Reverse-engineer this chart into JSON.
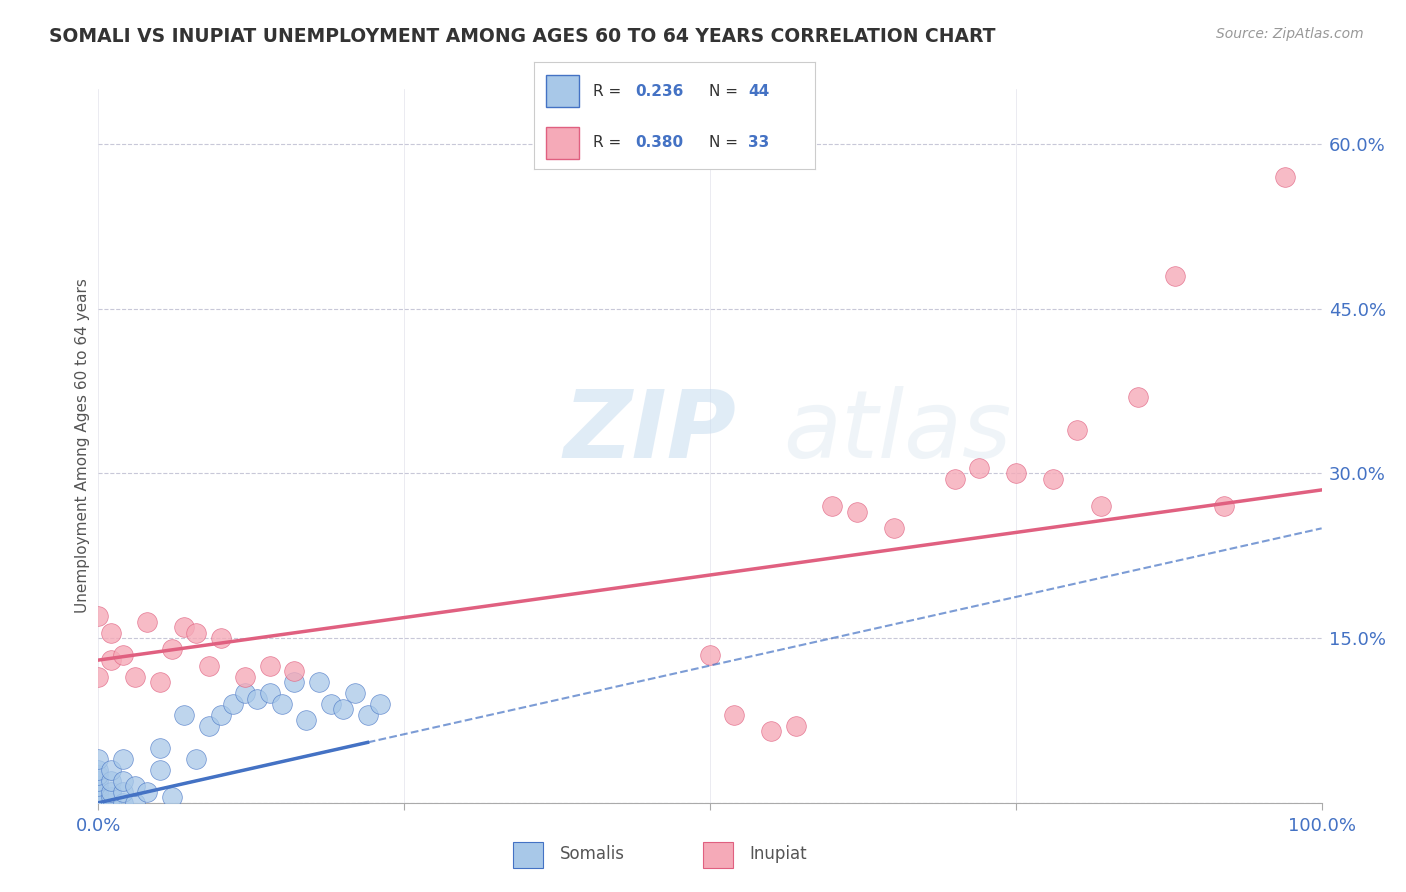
{
  "title": "SOMALI VS INUPIAT UNEMPLOYMENT AMONG AGES 60 TO 64 YEARS CORRELATION CHART",
  "source": "Source: ZipAtlas.com",
  "ylabel": "Unemployment Among Ages 60 to 64 years",
  "xlim": [
    0,
    1.0
  ],
  "ylim": [
    0,
    0.65
  ],
  "xticks": [
    0.0,
    0.25,
    0.5,
    0.75,
    1.0
  ],
  "xticklabels": [
    "0.0%",
    "",
    "",
    "",
    "100.0%"
  ],
  "yticks": [
    0.0,
    0.15,
    0.3,
    0.45,
    0.6
  ],
  "right_yticklabels": [
    "",
    "15.0%",
    "30.0%",
    "45.0%",
    "60.0%"
  ],
  "somali_color": "#a8c8e8",
  "inupiat_color": "#f5aab8",
  "somali_line_color": "#4472c4",
  "inupiat_line_color": "#e06080",
  "background_color": "#ffffff",
  "grid_color": "#c8c8d8",
  "watermark_zip": "ZIP",
  "watermark_atlas": "atlas",
  "somali_x": [
    0.0,
    0.0,
    0.0,
    0.0,
    0.0,
    0.0,
    0.0,
    0.0,
    0.0,
    0.0,
    0.0,
    0.0,
    0.01,
    0.01,
    0.01,
    0.01,
    0.01,
    0.02,
    0.02,
    0.02,
    0.02,
    0.03,
    0.03,
    0.04,
    0.05,
    0.05,
    0.06,
    0.07,
    0.08,
    0.09,
    0.1,
    0.11,
    0.12,
    0.13,
    0.14,
    0.15,
    0.16,
    0.17,
    0.18,
    0.19,
    0.2,
    0.21,
    0.22,
    0.23
  ],
  "somali_y": [
    0.0,
    0.0,
    0.0,
    0.005,
    0.005,
    0.01,
    0.01,
    0.015,
    0.02,
    0.025,
    0.03,
    0.04,
    0.0,
    0.005,
    0.01,
    0.02,
    0.03,
    0.0,
    0.01,
    0.02,
    0.04,
    0.0,
    0.015,
    0.01,
    0.03,
    0.05,
    0.005,
    0.08,
    0.04,
    0.07,
    0.08,
    0.09,
    0.1,
    0.095,
    0.1,
    0.09,
    0.11,
    0.075,
    0.11,
    0.09,
    0.085,
    0.1,
    0.08,
    0.09
  ],
  "inupiat_x": [
    0.0,
    0.0,
    0.01,
    0.01,
    0.02,
    0.03,
    0.04,
    0.05,
    0.06,
    0.07,
    0.08,
    0.09,
    0.1,
    0.12,
    0.14,
    0.16,
    0.5,
    0.52,
    0.55,
    0.57,
    0.6,
    0.62,
    0.65,
    0.7,
    0.72,
    0.75,
    0.78,
    0.8,
    0.82,
    0.85,
    0.88,
    0.92,
    0.97
  ],
  "inupiat_y": [
    0.115,
    0.17,
    0.13,
    0.155,
    0.135,
    0.115,
    0.165,
    0.11,
    0.14,
    0.16,
    0.155,
    0.125,
    0.15,
    0.115,
    0.125,
    0.12,
    0.135,
    0.08,
    0.065,
    0.07,
    0.27,
    0.265,
    0.25,
    0.295,
    0.305,
    0.3,
    0.295,
    0.34,
    0.27,
    0.37,
    0.48,
    0.27,
    0.57
  ],
  "inupiat_intercept": 0.13,
  "inupiat_slope": 0.155,
  "somali_intercept": 0.0,
  "somali_slope": 0.25
}
